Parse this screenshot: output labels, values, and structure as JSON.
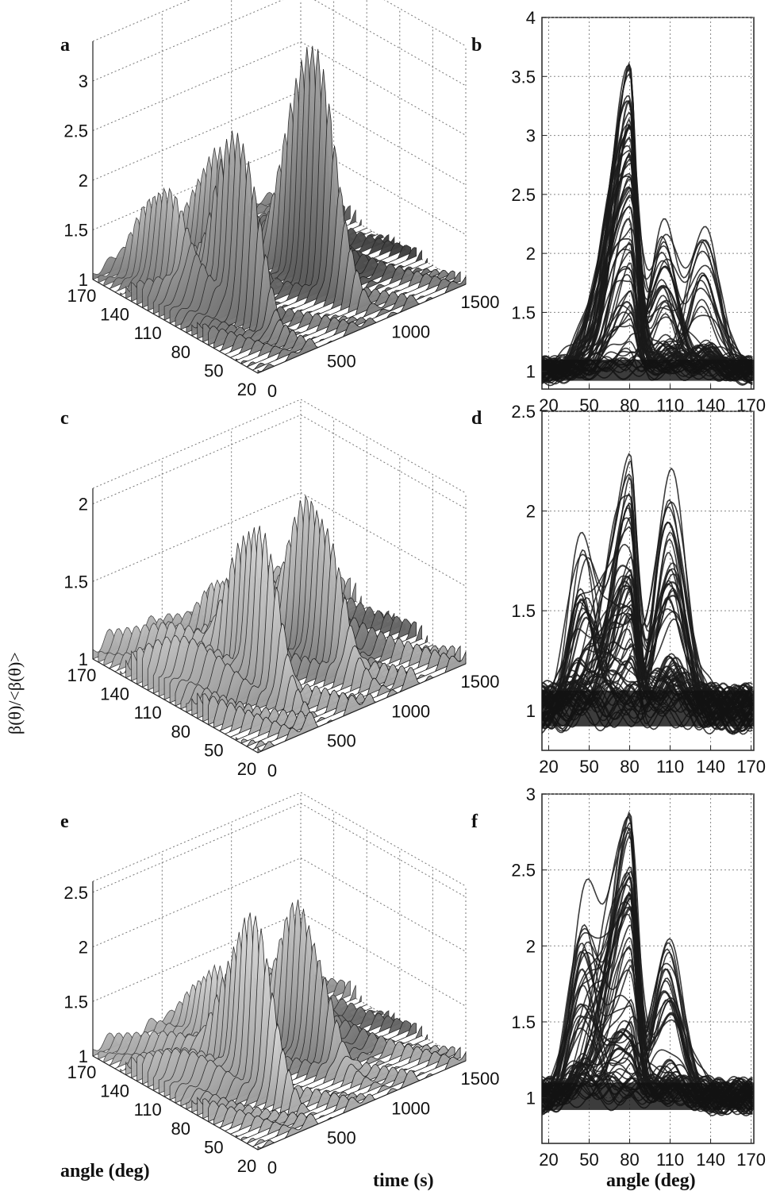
{
  "figure": {
    "panel_labels": [
      "a",
      "b",
      "c",
      "d",
      "e",
      "f"
    ],
    "shared_ylabel": "β(θ)/<β(θ)>",
    "xlabel_angle": "angle (deg)",
    "xlabel_time": "time (s)"
  },
  "chart_data": [
    {
      "panel": "a",
      "type": "surface3d",
      "angle_ticks": [
        170,
        140,
        110,
        80,
        50,
        20
      ],
      "time_ticks": [
        0,
        500,
        1000,
        1500
      ],
      "z_ticks": [
        1,
        1.5,
        2,
        2.5,
        3
      ],
      "zlim": [
        1,
        3.4
      ],
      "ridges": [
        {
          "time": 330,
          "angle": 80,
          "peak": 2.7
        },
        {
          "time": 870,
          "angle": 80,
          "peak": 3.4
        },
        {
          "time": 600,
          "angle": 130,
          "peak": 2.2
        },
        {
          "time": 200,
          "angle": 130,
          "peak": 1.9
        }
      ]
    },
    {
      "panel": "b",
      "type": "line",
      "x_ticks": [
        20,
        50,
        80,
        110,
        140,
        170
      ],
      "y_ticks": [
        1,
        1.5,
        2,
        2.5,
        3,
        3.5,
        4
      ],
      "xlim": [
        15,
        172
      ],
      "ylim": [
        0.85,
        4
      ],
      "grid": true,
      "main_peak": {
        "angle": 80,
        "max": 3.65
      },
      "secondary": [
        {
          "angle": 105,
          "value": 2.2
        },
        {
          "angle": 135,
          "value": 2.2
        }
      ]
    },
    {
      "panel": "c",
      "type": "surface3d",
      "angle_ticks": [
        170,
        140,
        110,
        80,
        50,
        20
      ],
      "time_ticks": [
        0,
        500,
        1000,
        1500
      ],
      "z_ticks": [
        1,
        1.5,
        2
      ],
      "zlim": [
        1,
        2.1
      ],
      "ridges": [
        {
          "time": 450,
          "angle": 80,
          "peak": 2.05
        },
        {
          "time": 900,
          "angle": 80,
          "peak": 1.95
        },
        {
          "time": 650,
          "angle": 120,
          "peak": 1.5
        }
      ]
    },
    {
      "panel": "d",
      "type": "line",
      "x_ticks": [
        20,
        50,
        80,
        110,
        140,
        170
      ],
      "y_ticks": [
        1,
        1.5,
        2,
        2.5
      ],
      "xlim": [
        15,
        172
      ],
      "ylim": [
        0.8,
        2.5
      ],
      "grid": true,
      "main_peak": {
        "angle": 80,
        "max": 2.22
      },
      "secondary": [
        {
          "angle": 45,
          "value": 1.8
        },
        {
          "angle": 110,
          "value": 2.13
        }
      ]
    },
    {
      "panel": "e",
      "type": "surface3d",
      "angle_ticks": [
        170,
        140,
        110,
        80,
        50,
        20
      ],
      "time_ticks": [
        0,
        500,
        1000,
        1500
      ],
      "z_ticks": [
        1,
        1.5,
        2,
        2.5
      ],
      "zlim": [
        1,
        2.6
      ],
      "ridges": [
        {
          "time": 420,
          "angle": 80,
          "peak": 2.55
        },
        {
          "time": 880,
          "angle": 90,
          "peak": 2.2
        },
        {
          "time": 600,
          "angle": 130,
          "peak": 1.7
        }
      ]
    },
    {
      "panel": "f",
      "type": "line",
      "x_ticks": [
        20,
        50,
        80,
        110,
        140,
        170
      ],
      "y_ticks": [
        1,
        1.5,
        2,
        2.5,
        3
      ],
      "xlim": [
        15,
        172
      ],
      "ylim": [
        0.7,
        3
      ],
      "grid": true,
      "main_peak": {
        "angle": 80,
        "max": 2.85
      },
      "secondary": [
        {
          "angle": 45,
          "value": 2.05
        },
        {
          "angle": 108,
          "value": 2.0
        }
      ]
    }
  ]
}
